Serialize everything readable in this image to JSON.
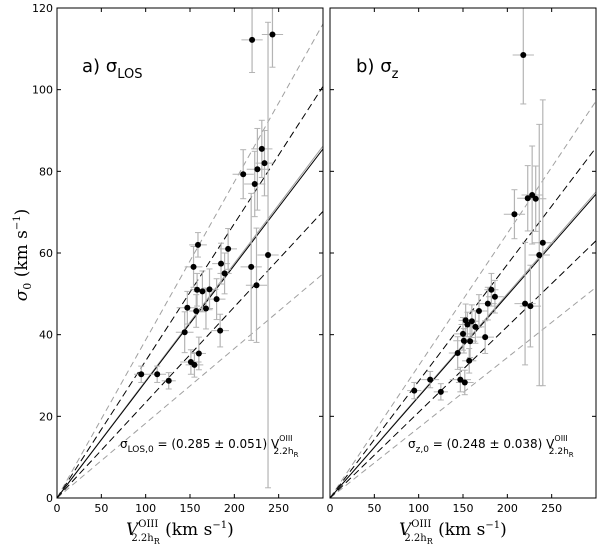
{
  "chart_data": [
    {
      "type": "scatter",
      "panel_label": "a)",
      "sigma_symbol": "σ",
      "sigma_subscript": "LOS",
      "annotation": {
        "lhs_symbol": "σ",
        "lhs_subscript": "LOS,0",
        "rhs": " = (0.285 ± 0.051) V",
        "v_superscript": "OIII",
        "v_subscript": "2.2h",
        "v_subsubscript": "R"
      },
      "xlim": [
        0,
        300
      ],
      "ylim": [
        0,
        120
      ],
      "x_ticks": [
        0,
        50,
        100,
        150,
        200,
        250
      ],
      "y_ticks": [
        0,
        20,
        40,
        60,
        80,
        100,
        120
      ],
      "fit": {
        "slope": 0.285,
        "sigma": 0.051
      },
      "points": [
        {
          "x": 95,
          "y": 30.3,
          "xerr": 8,
          "yerr": 2
        },
        {
          "x": 113,
          "y": 30.3,
          "xerr": 10,
          "yerr": 2
        },
        {
          "x": 126,
          "y": 28.7,
          "xerr": 8,
          "yerr": 2
        },
        {
          "x": 144,
          "y": 40.6,
          "xerr": 10,
          "yerr": 5
        },
        {
          "x": 147,
          "y": 46.6,
          "xerr": 12,
          "yerr": 4
        },
        {
          "x": 151,
          "y": 33.3,
          "xerr": 12,
          "yerr": 3
        },
        {
          "x": 154,
          "y": 56.6,
          "xerr": 10,
          "yerr": 5
        },
        {
          "x": 155,
          "y": 32.6,
          "xerr": 10,
          "yerr": 3
        },
        {
          "x": 157,
          "y": 45.8,
          "xerr": 8,
          "yerr": 4
        },
        {
          "x": 158,
          "y": 51.0,
          "xerr": 8,
          "yerr": 4
        },
        {
          "x": 159,
          "y": 62.0,
          "xerr": 10,
          "yerr": 3
        },
        {
          "x": 160,
          "y": 35.4,
          "xerr": 8,
          "yerr": 4
        },
        {
          "x": 164,
          "y": 50.6,
          "xerr": 10,
          "yerr": 5
        },
        {
          "x": 168,
          "y": 46.4,
          "xerr": 8,
          "yerr": 5
        },
        {
          "x": 172,
          "y": 51.1,
          "xerr": 10,
          "yerr": 5
        },
        {
          "x": 180,
          "y": 48.7,
          "xerr": 10,
          "yerr": 5
        },
        {
          "x": 184,
          "y": 41.0,
          "xerr": 10,
          "yerr": 4
        },
        {
          "x": 185,
          "y": 57.4,
          "xerr": 10,
          "yerr": 5
        },
        {
          "x": 189,
          "y": 55.0,
          "xerr": 8,
          "yerr": 5
        },
        {
          "x": 193,
          "y": 61.0,
          "xerr": 10,
          "yerr": 5
        },
        {
          "x": 210,
          "y": 79.3,
          "xerr": 12,
          "yerr": 6
        },
        {
          "x": 219,
          "y": 56.6,
          "xerr": 12,
          "yerr": 18
        },
        {
          "x": 220,
          "y": 112.2,
          "xerr": 12,
          "yerr": 8
        },
        {
          "x": 223,
          "y": 76.9,
          "xerr": 12,
          "yerr": 8
        },
        {
          "x": 225,
          "y": 52.1,
          "xerr": 12,
          "yerr": 14
        },
        {
          "x": 226,
          "y": 80.5,
          "xerr": 12,
          "yerr": 10
        },
        {
          "x": 231,
          "y": 85.5,
          "xerr": 12,
          "yerr": 7
        },
        {
          "x": 234,
          "y": 82.0,
          "xerr": 10,
          "yerr": 8
        },
        {
          "x": 238,
          "y": 59.5,
          "xerr": 12,
          "yerr": 57
        },
        {
          "x": 243,
          "y": 113.5,
          "xerr": 12,
          "yerr": 8
        }
      ]
    },
    {
      "type": "scatter",
      "panel_label": "b)",
      "sigma_symbol": "σ",
      "sigma_subscript": "z",
      "annotation": {
        "lhs_symbol": "σ",
        "lhs_subscript": "z,0",
        "rhs": " = (0.248 ± 0.038) V",
        "v_superscript": "OIII",
        "v_subscript": "2.2h",
        "v_subsubscript": "R"
      },
      "xlim": [
        0,
        300
      ],
      "ylim": [
        0,
        120
      ],
      "x_ticks": [
        0,
        50,
        100,
        150,
        200,
        250
      ],
      "y_ticks": [
        0,
        20,
        40,
        60,
        80,
        100,
        120
      ],
      "fit": {
        "slope": 0.248,
        "sigma": 0.038
      },
      "points": [
        {
          "x": 95,
          "y": 26.3,
          "xerr": 8,
          "yerr": 2
        },
        {
          "x": 113,
          "y": 29.0,
          "xerr": 10,
          "yerr": 2
        },
        {
          "x": 125,
          "y": 26.0,
          "xerr": 8,
          "yerr": 2
        },
        {
          "x": 144,
          "y": 35.5,
          "xerr": 10,
          "yerr": 4
        },
        {
          "x": 147,
          "y": 29.0,
          "xerr": 12,
          "yerr": 3
        },
        {
          "x": 150,
          "y": 40.2,
          "xerr": 10,
          "yerr": 4
        },
        {
          "x": 151,
          "y": 38.5,
          "xerr": 12,
          "yerr": 3
        },
        {
          "x": 152,
          "y": 28.3,
          "xerr": 10,
          "yerr": 3
        },
        {
          "x": 153,
          "y": 43.5,
          "xerr": 8,
          "yerr": 4
        },
        {
          "x": 155,
          "y": 42.5,
          "xerr": 10,
          "yerr": 3
        },
        {
          "x": 157,
          "y": 33.6,
          "xerr": 8,
          "yerr": 3
        },
        {
          "x": 158,
          "y": 38.4,
          "xerr": 8,
          "yerr": 4
        },
        {
          "x": 160,
          "y": 43.3,
          "xerr": 8,
          "yerr": 4
        },
        {
          "x": 164,
          "y": 41.9,
          "xerr": 10,
          "yerr": 4
        },
        {
          "x": 168,
          "y": 45.8,
          "xerr": 10,
          "yerr": 4
        },
        {
          "x": 175,
          "y": 39.4,
          "xerr": 10,
          "yerr": 4
        },
        {
          "x": 178,
          "y": 47.6,
          "xerr": 10,
          "yerr": 4
        },
        {
          "x": 182,
          "y": 51.0,
          "xerr": 8,
          "yerr": 4
        },
        {
          "x": 186,
          "y": 49.3,
          "xerr": 10,
          "yerr": 4
        },
        {
          "x": 208,
          "y": 69.5,
          "xerr": 12,
          "yerr": 6
        },
        {
          "x": 218,
          "y": 108.5,
          "xerr": 12,
          "yerr": 12
        },
        {
          "x": 220,
          "y": 47.6,
          "xerr": 12,
          "yerr": 15
        },
        {
          "x": 223,
          "y": 73.4,
          "xerr": 12,
          "yerr": 8
        },
        {
          "x": 226,
          "y": 47.0,
          "xerr": 12,
          "yerr": 10
        },
        {
          "x": 228,
          "y": 74.2,
          "xerr": 12,
          "yerr": 12
        },
        {
          "x": 232,
          "y": 73.3,
          "xerr": 12,
          "yerr": 8
        },
        {
          "x": 236,
          "y": 59.5,
          "xerr": 12,
          "yerr": 32
        },
        {
          "x": 240,
          "y": 62.5,
          "xerr": 12,
          "yerr": 35
        }
      ]
    }
  ],
  "y_axis_label": {
    "sigma": "σ",
    "sub": "0",
    "units": " (km s",
    "exp": "−1",
    "close": ")"
  },
  "x_axis_label": {
    "v": "V",
    "sup": "OIII",
    "sub": "2.2h",
    "subsub": "R",
    "units": "  (km s",
    "exp": "−1",
    "close": ")"
  },
  "colors": {
    "points": "#000000",
    "errorbars": "#b4b4b4",
    "fit": "#000000",
    "fit_band": "#000000",
    "outer_band": "#a0a0a0",
    "frame": "#000000"
  }
}
